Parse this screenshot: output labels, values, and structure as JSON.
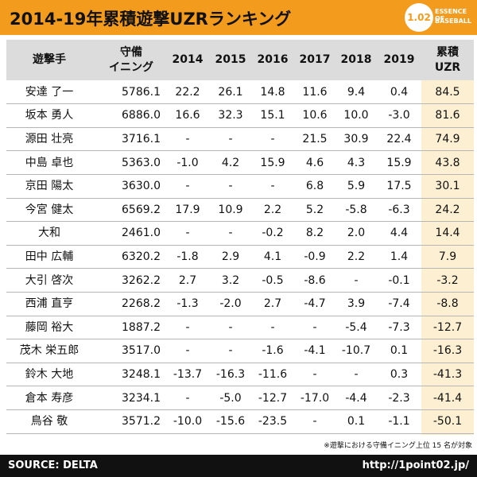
{
  "header": {
    "title": "2014-19年累積遊撃UZRランキング",
    "logo": {
      "number": "1.02",
      "line1": "ESSENCE OF",
      "line2": "BASEBALL"
    }
  },
  "table": {
    "columns": [
      [
        "遊撃手"
      ],
      [
        "守備",
        "イニング"
      ],
      [
        "2014"
      ],
      [
        "2015"
      ],
      [
        "2016"
      ],
      [
        "2017"
      ],
      [
        "2018"
      ],
      [
        "2019"
      ],
      [
        "累積",
        "UZR"
      ]
    ],
    "rows": [
      [
        "安達 了一",
        "5786.1",
        "22.2",
        "26.1",
        "14.8",
        "11.6",
        "9.4",
        "0.4",
        "84.5"
      ],
      [
        "坂本 勇人",
        "6886.0",
        "16.6",
        "32.3",
        "15.1",
        "10.6",
        "10.0",
        "-3.0",
        "81.6"
      ],
      [
        "源田 壮亮",
        "3716.1",
        "-",
        "-",
        "-",
        "21.5",
        "30.9",
        "22.4",
        "74.9"
      ],
      [
        "中島 卓也",
        "5363.0",
        "-1.0",
        "4.2",
        "15.9",
        "4.6",
        "4.3",
        "15.9",
        "43.8"
      ],
      [
        "京田 陽太",
        "3630.0",
        "-",
        "-",
        "-",
        "6.8",
        "5.9",
        "17.5",
        "30.1"
      ],
      [
        "今宮 健太",
        "6569.2",
        "17.9",
        "10.9",
        "2.2",
        "5.2",
        "-5.8",
        "-6.3",
        "24.2"
      ],
      [
        "大和",
        "2461.0",
        "-",
        "-",
        "-0.2",
        "8.2",
        "2.0",
        "4.4",
        "14.4"
      ],
      [
        "田中 広輔",
        "6320.2",
        "-1.8",
        "2.9",
        "4.1",
        "-0.9",
        "2.2",
        "1.4",
        "7.9"
      ],
      [
        "大引 啓次",
        "3262.2",
        "2.7",
        "3.2",
        "-0.5",
        "-8.6",
        "-",
        "-0.1",
        "-3.2"
      ],
      [
        "西浦 直亨",
        "2268.2",
        "-1.3",
        "-2.0",
        "2.7",
        "-4.7",
        "3.9",
        "-7.4",
        "-8.8"
      ],
      [
        "藤岡 裕大",
        "1887.2",
        "-",
        "-",
        "-",
        "-",
        "-5.4",
        "-7.3",
        "-12.7"
      ],
      [
        "茂木 栄五郎",
        "3517.0",
        "-",
        "-",
        "-1.6",
        "-4.1",
        "-10.7",
        "0.1",
        "-16.3"
      ],
      [
        "鈴木 大地",
        "3248.1",
        "-13.7",
        "-16.3",
        "-11.6",
        "-",
        "-",
        "0.3",
        "-41.3"
      ],
      [
        "倉本 寿彦",
        "3234.1",
        "-",
        "-5.0",
        "-12.7",
        "-17.0",
        "-4.4",
        "-2.3",
        "-41.4"
      ],
      [
        "鳥谷 敬",
        "3571.2",
        "-10.0",
        "-15.6",
        "-23.5",
        "-",
        "0.1",
        "-1.1",
        "-50.1"
      ]
    ]
  },
  "footnote": "※遊撃における守備イニング上位 15 名が対象",
  "footer": {
    "source": "SOURCE: DELTA",
    "url": "http://1point02.jp/"
  }
}
